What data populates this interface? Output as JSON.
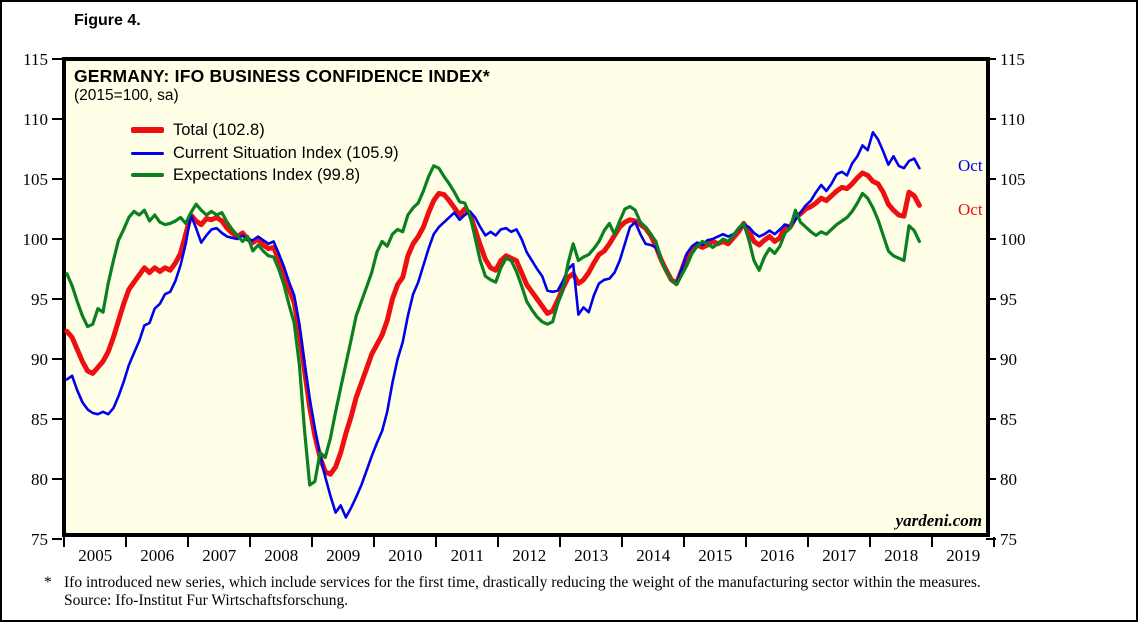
{
  "figure_label": "Figure 4.",
  "header": {
    "title": "GERMANY: IFO BUSINESS CONFIDENCE INDEX*",
    "subtitle": "(2015=100, sa)"
  },
  "watermark": "yardeni.com",
  "footnote": {
    "marker": "*",
    "line1": "Ifo introduced new series, which include services for the first time, drastically reducing the weight of the manufacturing sector within the measures.",
    "line2": "Source: Ifo-Institut Fur Wirtschaftsforschung."
  },
  "colors": {
    "total": "#ee1010",
    "current": "#0000ee",
    "expectations": "#0a8020",
    "plot_bg": "#ffffe8",
    "axis": "#000000"
  },
  "chart_data": {
    "type": "line",
    "title": "GERMANY: IFO BUSINESS CONFIDENCE INDEX*",
    "subtitle": "(2015=100, sa)",
    "x_start": "2005-01",
    "x_end": "2018-10",
    "x_axis_years": [
      2005,
      2006,
      2007,
      2008,
      2009,
      2010,
      2011,
      2012,
      2013,
      2014,
      2015,
      2016,
      2017,
      2018,
      2019
    ],
    "y_ticks": [
      75,
      80,
      85,
      90,
      95,
      100,
      105,
      110,
      115
    ],
    "ylim": [
      75,
      115
    ],
    "grid": false,
    "legend_position": "top-left-inside",
    "series": [
      {
        "name": "Total (102.8)",
        "color_key": "total",
        "last_value": 102.8,
        "last_label": "Oct",
        "stroke_width": 5,
        "values": [
          92.3,
          91.8,
          90.8,
          89.8,
          89.0,
          88.8,
          89.3,
          89.8,
          90.6,
          91.8,
          93.2,
          94.6,
          95.8,
          96.4,
          97.0,
          97.6,
          97.2,
          97.6,
          97.3,
          97.6,
          97.4,
          98.0,
          98.8,
          100.4,
          102.0,
          101.5,
          101.2,
          101.7,
          101.6,
          101.8,
          101.5,
          100.9,
          100.5,
          100.2,
          100.5,
          100.0,
          99.7,
          100.0,
          99.5,
          99.2,
          99.3,
          98.3,
          97.2,
          95.8,
          94.7,
          92.2,
          89.0,
          86.0,
          83.6,
          81.8,
          80.6,
          80.4,
          81.0,
          82.2,
          83.8,
          85.2,
          86.8,
          88.0,
          89.2,
          90.4,
          91.2,
          92.0,
          93.2,
          95.0,
          96.2,
          96.8,
          98.6,
          99.6,
          100.2,
          101.0,
          102.2,
          103.2,
          103.8,
          103.7,
          103.2,
          102.6,
          102.0,
          102.5,
          102.1,
          100.8,
          99.5,
          98.3,
          97.6,
          97.4,
          98.2,
          98.6,
          98.4,
          98.2,
          97.2,
          96.2,
          95.6,
          95.0,
          94.4,
          93.8,
          94.0,
          94.9,
          95.9,
          96.8,
          97.1,
          96.3,
          96.6,
          97.2,
          98.0,
          98.7,
          99.0,
          99.6,
          100.3,
          101.0,
          101.4,
          101.6,
          101.5,
          101.2,
          100.9,
          100.3,
          99.4,
          98.3,
          97.4,
          96.6,
          96.3,
          97.4,
          98.6,
          99.2,
          99.5,
          99.3,
          99.5,
          99.8,
          99.6,
          99.8,
          99.6,
          100.1,
          100.6,
          101.3,
          100.6,
          99.8,
          99.5,
          99.9,
          100.2,
          99.8,
          100.1,
          101.1,
          101.0,
          101.8,
          102.1,
          102.5,
          102.7,
          103.0,
          103.4,
          103.2,
          103.6,
          104.0,
          104.3,
          104.2,
          104.6,
          105.1,
          105.5,
          105.3,
          104.8,
          104.6,
          103.9,
          102.9,
          102.4,
          102.0,
          101.9,
          103.9,
          103.6,
          102.8
        ]
      },
      {
        "name": "Current Situation Index (105.9)",
        "color_key": "current",
        "last_value": 105.9,
        "last_label": "Oct",
        "stroke_width": 2.6,
        "values": [
          88.3,
          88.6,
          87.4,
          86.4,
          85.8,
          85.5,
          85.4,
          85.6,
          85.4,
          85.9,
          86.9,
          88.1,
          89.5,
          90.5,
          91.5,
          92.8,
          93.0,
          94.2,
          94.6,
          95.4,
          95.6,
          96.5,
          97.8,
          99.6,
          102.0,
          100.9,
          99.7,
          100.3,
          100.8,
          100.9,
          100.5,
          100.2,
          100.1,
          100.0,
          100.3,
          99.9,
          99.9,
          100.2,
          99.9,
          99.6,
          99.8,
          98.8,
          97.7,
          96.4,
          95.3,
          92.9,
          89.6,
          86.7,
          84.2,
          82.0,
          80.2,
          78.6,
          77.2,
          77.8,
          76.8,
          77.6,
          78.5,
          79.5,
          80.7,
          81.9,
          83.0,
          84.0,
          85.6,
          88.0,
          90.0,
          91.4,
          93.6,
          95.4,
          96.4,
          97.8,
          99.2,
          100.4,
          101.0,
          101.4,
          101.8,
          102.2,
          101.6,
          102.0,
          102.3,
          101.8,
          101.0,
          100.3,
          100.6,
          100.3,
          100.8,
          100.9,
          100.6,
          100.8,
          100.0,
          98.9,
          98.2,
          97.5,
          96.9,
          95.7,
          95.6,
          95.7,
          96.5,
          97.5,
          97.9,
          93.7,
          94.3,
          93.9,
          95.3,
          96.3,
          96.6,
          96.7,
          97.2,
          98.2,
          99.6,
          101.0,
          101.4,
          100.4,
          99.6,
          99.5,
          99.3,
          98.3,
          97.4,
          96.6,
          96.3,
          97.5,
          98.8,
          99.4,
          99.7,
          99.5,
          99.9,
          100.0,
          100.2,
          100.4,
          100.2,
          100.4,
          100.8,
          101.2,
          101.0,
          100.5,
          100.2,
          100.4,
          100.7,
          100.4,
          100.8,
          101.2,
          101.0,
          101.6,
          102.2,
          102.8,
          103.2,
          103.9,
          104.5,
          104.0,
          104.6,
          105.4,
          105.6,
          105.3,
          106.3,
          106.9,
          107.8,
          107.4,
          108.9,
          108.3,
          107.3,
          106.2,
          106.9,
          106.1,
          105.9,
          106.5,
          106.7,
          105.9
        ]
      },
      {
        "name": "Expectations Index (99.8)",
        "color_key": "expectations",
        "last_value": 99.8,
        "last_label": "Oct",
        "stroke_width": 3.2,
        "values": [
          97.1,
          96.1,
          94.8,
          93.6,
          92.7,
          92.9,
          94.2,
          93.9,
          96.3,
          98.2,
          99.9,
          100.8,
          101.8,
          102.3,
          102.0,
          102.4,
          101.5,
          102.0,
          101.4,
          101.2,
          101.3,
          101.5,
          101.8,
          101.3,
          102.2,
          102.9,
          102.4,
          102.0,
          102.3,
          102.0,
          102.2,
          101.4,
          100.8,
          100.3,
          99.8,
          100.2,
          99.0,
          99.5,
          99.0,
          98.6,
          98.5,
          97.5,
          96.2,
          94.5,
          93.0,
          89.5,
          84.0,
          79.5,
          79.8,
          82.2,
          81.8,
          83.4,
          85.6,
          87.6,
          89.6,
          91.6,
          93.6,
          94.8,
          96.0,
          97.2,
          98.9,
          99.8,
          99.4,
          100.4,
          100.8,
          100.6,
          102.0,
          102.6,
          103.0,
          104.0,
          105.2,
          106.1,
          105.9,
          105.2,
          104.6,
          103.9,
          103.1,
          103.0,
          102.0,
          100.1,
          98.2,
          96.9,
          96.6,
          96.4,
          97.6,
          98.4,
          98.2,
          97.3,
          96.1,
          94.8,
          94.1,
          93.5,
          93.1,
          92.9,
          93.1,
          94.6,
          95.7,
          98.0,
          99.6,
          98.2,
          98.5,
          98.7,
          99.2,
          99.8,
          100.7,
          101.3,
          100.4,
          101.5,
          102.5,
          102.7,
          102.4,
          101.4,
          101.0,
          100.4,
          99.8,
          98.3,
          97.3,
          96.6,
          96.2,
          97.0,
          97.8,
          98.8,
          99.4,
          99.8,
          99.6,
          99.3,
          99.6,
          100.0,
          99.8,
          100.3,
          100.9,
          101.3,
          99.9,
          98.2,
          97.4,
          98.5,
          99.2,
          98.8,
          99.4,
          100.5,
          100.9,
          102.4,
          101.4,
          101.0,
          100.6,
          100.3,
          100.6,
          100.4,
          100.8,
          101.2,
          101.5,
          101.8,
          102.3,
          103.0,
          103.8,
          103.4,
          102.6,
          101.6,
          100.3,
          99.0,
          98.6,
          98.4,
          98.2,
          101.1,
          100.7,
          99.8
        ]
      }
    ]
  }
}
